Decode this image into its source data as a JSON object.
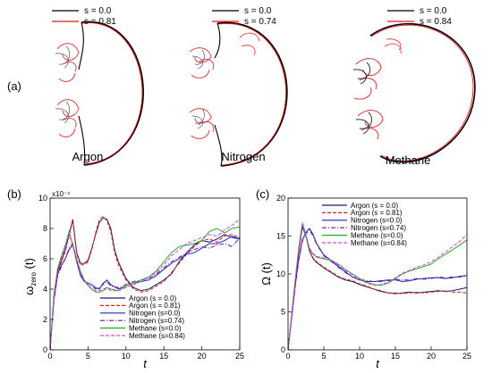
{
  "top": {
    "label": "(a)",
    "panels": [
      {
        "name": "Argon",
        "legend": [
          {
            "text": "s = 0.0",
            "color": "#000000"
          },
          {
            "text": "s = 0.81",
            "color": "#e0191b"
          }
        ]
      },
      {
        "name": "Nitrogen",
        "legend": [
          {
            "text": "s = 0.0",
            "color": "#000000"
          },
          {
            "text": "s = 0.74",
            "color": "#e0191b"
          }
        ]
      },
      {
        "name": "Methane",
        "legend": [
          {
            "text": "s = 0.0",
            "color": "#000000"
          },
          {
            "text": "s = 0.84",
            "color": "#e0191b"
          }
        ]
      }
    ]
  },
  "chart_data": [
    {
      "id": "b",
      "label": "(b)",
      "type": "line",
      "title": "",
      "xlabel": "t",
      "ylabel": "ω",
      "ylabel_sub": "zero",
      "ylabel_tail": " (t)",
      "exponent": "x10⁻⁴",
      "xlim": [
        0,
        25
      ],
      "ylim": [
        0,
        10
      ],
      "xticks": [
        0,
        5,
        10,
        15,
        20,
        25
      ],
      "yticks": [
        0,
        2,
        4,
        6,
        8,
        10
      ],
      "legend_position": "bottom-center",
      "series": [
        {
          "name": "Argon (s = 0.0)",
          "color": "#1a1a6e",
          "dash": "",
          "x": [
            0,
            0.5,
            1,
            1.5,
            2,
            2.5,
            3,
            3.5,
            4,
            4.5,
            5,
            5.5,
            6,
            6.5,
            7,
            7.5,
            8,
            8.5,
            9,
            10,
            11,
            12,
            13,
            14,
            15,
            16,
            17,
            18,
            19,
            20,
            21,
            22,
            23,
            24,
            25
          ],
          "y": [
            0,
            3.5,
            5.2,
            5.9,
            6.6,
            7.6,
            8.6,
            6.4,
            5.7,
            5.7,
            5.9,
            6.7,
            7.6,
            8.4,
            8.7,
            8.6,
            8.0,
            6.6,
            5.8,
            4.7,
            4.1,
            3.9,
            4.0,
            4.3,
            4.6,
            5.0,
            5.8,
            6.4,
            6.9,
            7.2,
            7.1,
            7.3,
            7.6,
            7.4,
            7.3
          ]
        },
        {
          "name": "Argon (s = 0.81)",
          "color": "#d92020",
          "dash": "4,2",
          "x": [
            0,
            0.5,
            1,
            1.5,
            2,
            2.5,
            3,
            3.5,
            4,
            4.5,
            5,
            5.5,
            6,
            6.5,
            7,
            7.5,
            8,
            8.5,
            9,
            10,
            11,
            12,
            13,
            14,
            15,
            16,
            17,
            18,
            19,
            20,
            21,
            22,
            23,
            24,
            25
          ],
          "y": [
            0,
            3.4,
            5.1,
            5.8,
            6.5,
            7.5,
            8.5,
            6.3,
            5.6,
            5.6,
            5.8,
            6.6,
            7.7,
            8.6,
            8.8,
            8.5,
            7.8,
            6.4,
            5.6,
            4.6,
            4.0,
            3.8,
            3.9,
            4.2,
            4.5,
            5.1,
            5.7,
            6.3,
            6.8,
            7.2,
            7.3,
            7.1,
            7.5,
            7.6,
            7.4
          ]
        },
        {
          "name": "Nitrogen (s=0.0)",
          "color": "#2222cc",
          "dash": "",
          "x": [
            0,
            0.5,
            1,
            1.5,
            2,
            2.5,
            3,
            3.5,
            4,
            4.5,
            5,
            5.5,
            6,
            6.5,
            7,
            7.5,
            8,
            9,
            10,
            11,
            12,
            13,
            14,
            15,
            16,
            17,
            18,
            19,
            20,
            21,
            22,
            23,
            24,
            25
          ],
          "y": [
            0,
            3.3,
            5.0,
            5.6,
            6.0,
            6.6,
            6.9,
            5.8,
            4.9,
            4.5,
            4.4,
            4.3,
            4.1,
            4.0,
            4.4,
            4.6,
            4.3,
            4.0,
            4.2,
            4.4,
            4.5,
            4.6,
            4.9,
            5.3,
            5.7,
            6.0,
            6.3,
            6.4,
            6.7,
            7.0,
            7.0,
            7.2,
            7.5,
            7.3
          ]
        },
        {
          "name": "Nitrogen (s=0.74)",
          "color": "#6a1a7a",
          "dash": "5,2,1,2",
          "x": [
            0,
            0.5,
            1,
            1.5,
            2,
            2.5,
            3,
            3.5,
            4,
            4.5,
            5,
            5.5,
            6,
            6.5,
            7,
            7.5,
            8,
            9,
            10,
            11,
            12,
            13,
            14,
            15,
            16,
            17,
            18,
            19,
            20,
            21,
            22,
            23,
            24,
            25
          ],
          "y": [
            0,
            3.2,
            4.9,
            5.5,
            6.0,
            6.7,
            7.0,
            5.9,
            5.0,
            4.5,
            4.3,
            4.2,
            4.0,
            4.1,
            4.3,
            4.5,
            4.2,
            4.1,
            4.3,
            4.5,
            4.6,
            4.7,
            5.0,
            5.4,
            5.8,
            6.1,
            6.4,
            6.6,
            6.8,
            6.7,
            6.9,
            7.0,
            6.8,
            7.4
          ]
        },
        {
          "name": "Methane (s=0.0)",
          "color": "#22aa22",
          "dash": "",
          "x": [
            0,
            0.5,
            1,
            1.5,
            2,
            2.5,
            3,
            3.5,
            4,
            4.5,
            5,
            5.5,
            6,
            6.5,
            7,
            7.5,
            8,
            9,
            10,
            11,
            12,
            13,
            14,
            15,
            16,
            17,
            18,
            19,
            20,
            21,
            22,
            23,
            24,
            25
          ],
          "y": [
            0,
            3.6,
            5.4,
            6.2,
            6.9,
            7.8,
            6.9,
            6.0,
            5.2,
            4.6,
            4.3,
            4.0,
            3.8,
            3.8,
            3.9,
            4.1,
            4.0,
            3.9,
            4.2,
            4.4,
            4.6,
            4.8,
            5.2,
            5.8,
            6.4,
            6.8,
            6.9,
            7.0,
            7.2,
            7.8,
            8.0,
            7.7,
            8.0,
            8.1
          ]
        },
        {
          "name": "Methane (s=0.84)",
          "color": "#e040e0",
          "dash": "4,2",
          "x": [
            0,
            0.5,
            1,
            1.5,
            2,
            2.5,
            3,
            3.5,
            4,
            4.5,
            5,
            5.5,
            6,
            6.5,
            7,
            7.5,
            8,
            9,
            10,
            11,
            12,
            13,
            14,
            15,
            16,
            17,
            18,
            19,
            20,
            21,
            22,
            23,
            24,
            25
          ],
          "y": [
            0,
            3.5,
            5.3,
            6.1,
            6.8,
            7.7,
            6.8,
            5.9,
            5.1,
            4.6,
            4.2,
            4.0,
            3.9,
            3.9,
            4.0,
            4.1,
            3.9,
            3.9,
            4.1,
            4.3,
            4.5,
            4.8,
            5.1,
            5.6,
            6.2,
            6.6,
            7.0,
            7.2,
            7.4,
            7.6,
            7.5,
            7.9,
            8.2,
            8.6
          ]
        }
      ]
    },
    {
      "id": "c",
      "label": "(c)",
      "type": "line",
      "title": "",
      "xlabel": "t",
      "ylabel": "Ω (t)",
      "xlim": [
        0,
        25
      ],
      "ylim": [
        0,
        20
      ],
      "xticks": [
        0,
        5,
        10,
        15,
        20,
        25
      ],
      "yticks": [
        0,
        5,
        10,
        15,
        20
      ],
      "legend_position": "top-right",
      "series": [
        {
          "name": "Argon (s = 0.0)",
          "color": "#1a1a6e",
          "dash": "",
          "x": [
            0,
            0.5,
            1,
            1.5,
            2,
            2.5,
            3,
            3.5,
            4,
            5,
            6,
            7,
            8,
            9,
            10,
            11,
            12,
            13,
            14,
            15,
            16,
            17,
            18,
            19,
            20,
            21,
            22,
            23,
            24,
            25
          ],
          "y": [
            0,
            4.5,
            9.0,
            13.0,
            16.2,
            15.0,
            13.0,
            12.0,
            11.5,
            10.8,
            10.2,
            9.6,
            9.2,
            9.0,
            8.6,
            8.3,
            8.0,
            7.7,
            7.5,
            7.4,
            7.5,
            7.6,
            7.5,
            7.6,
            7.7,
            7.8,
            7.7,
            7.8,
            8.0,
            8.2
          ]
        },
        {
          "name": "Argon (s = 0.81)",
          "color": "#d92020",
          "dash": "4,2",
          "x": [
            0,
            0.5,
            1,
            1.5,
            2,
            2.5,
            3,
            3.5,
            4,
            5,
            6,
            7,
            8,
            9,
            10,
            11,
            12,
            13,
            14,
            15,
            16,
            17,
            18,
            19,
            20,
            21,
            22,
            23,
            24,
            25
          ],
          "y": [
            0,
            4.4,
            8.8,
            12.8,
            16.6,
            15.2,
            13.1,
            12.1,
            11.6,
            10.9,
            10.3,
            9.7,
            9.3,
            9.1,
            8.7,
            8.4,
            8.0,
            7.8,
            7.5,
            7.5,
            7.4,
            7.5,
            7.6,
            7.5,
            7.6,
            7.7,
            7.8,
            7.6,
            7.6,
            7.5
          ]
        },
        {
          "name": "Nitrogen (s=0.0)",
          "color": "#2222cc",
          "dash": "",
          "x": [
            0,
            0.5,
            1,
            1.5,
            2,
            2.5,
            3,
            3.5,
            4,
            5,
            6,
            7,
            8,
            9,
            10,
            11,
            12,
            13,
            14,
            15,
            16,
            17,
            18,
            19,
            20,
            21,
            22,
            23,
            24,
            25
          ],
          "y": [
            0,
            4.2,
            8.5,
            12.0,
            14.5,
            15.5,
            16.0,
            15.2,
            14.0,
            12.5,
            11.8,
            11.0,
            10.3,
            9.6,
            9.2,
            9.0,
            9.0,
            9.1,
            9.2,
            9.2,
            9.0,
            9.1,
            9.3,
            9.4,
            9.5,
            9.5,
            9.4,
            9.5,
            9.7,
            9.8
          ]
        },
        {
          "name": "Nitrogen (s=0.74)",
          "color": "#6a1a7a",
          "dash": "5,2,1,2",
          "x": [
            0,
            0.5,
            1,
            1.5,
            2,
            2.5,
            3,
            3.5,
            4,
            5,
            6,
            7,
            8,
            9,
            10,
            11,
            12,
            13,
            14,
            15,
            16,
            17,
            18,
            19,
            20,
            21,
            22,
            23,
            24,
            25
          ],
          "y": [
            0,
            4.1,
            8.3,
            11.8,
            14.3,
            15.3,
            15.8,
            15.0,
            13.9,
            12.4,
            11.7,
            10.9,
            10.2,
            9.6,
            9.3,
            9.1,
            9.0,
            9.0,
            9.1,
            9.3,
            9.2,
            9.2,
            9.4,
            9.3,
            9.4,
            9.6,
            9.5,
            9.6,
            9.6,
            9.7
          ]
        },
        {
          "name": "Methane (s=0.0)",
          "color": "#22aa22",
          "dash": "",
          "x": [
            0,
            0.5,
            1,
            1.5,
            2,
            2.5,
            3,
            3.5,
            4,
            5,
            6,
            7,
            8,
            9,
            10,
            11,
            12,
            13,
            14,
            15,
            16,
            17,
            18,
            19,
            20,
            21,
            22,
            23,
            24,
            25
          ],
          "y": [
            0,
            4.6,
            9.2,
            13.5,
            16.6,
            15.0,
            13.3,
            12.6,
            12.2,
            12.0,
            11.8,
            11.3,
            10.6,
            10.0,
            9.4,
            8.9,
            8.6,
            8.5,
            8.8,
            9.4,
            10.0,
            10.4,
            10.7,
            11.0,
            11.3,
            12.0,
            12.6,
            13.2,
            13.8,
            14.5
          ]
        },
        {
          "name": "Methane (s=0.84)",
          "color": "#e040e0",
          "dash": "4,2",
          "x": [
            0,
            0.5,
            1,
            1.5,
            2,
            2.5,
            3,
            3.5,
            4,
            5,
            6,
            7,
            8,
            9,
            10,
            11,
            12,
            13,
            14,
            15,
            16,
            17,
            18,
            19,
            20,
            21,
            22,
            23,
            24,
            25
          ],
          "y": [
            0,
            4.5,
            9.1,
            13.4,
            16.8,
            15.2,
            13.4,
            12.7,
            12.3,
            12.1,
            11.9,
            11.2,
            10.5,
            9.9,
            9.3,
            8.8,
            8.5,
            8.6,
            8.9,
            9.5,
            10.1,
            10.5,
            10.9,
            11.2,
            11.6,
            12.2,
            12.9,
            13.6,
            14.3,
            15.2
          ]
        }
      ]
    }
  ]
}
